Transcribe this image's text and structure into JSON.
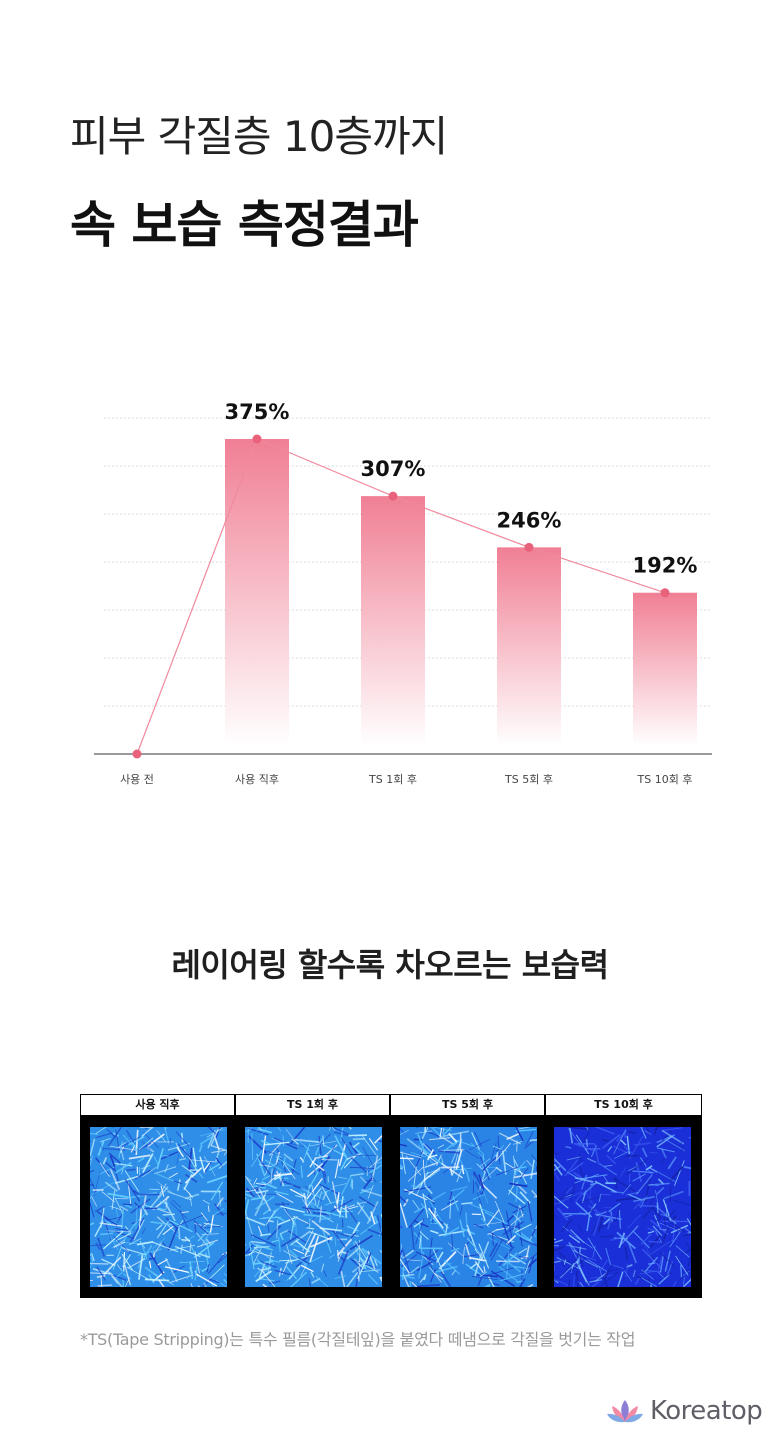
{
  "heading": {
    "line1": "피부 각질층 10층까지",
    "line2": "속 보습 측정결과"
  },
  "chart_data": {
    "type": "bar",
    "categories": [
      "사용 전",
      "사용 직후",
      "TS 1회 후",
      "TS 5회 후",
      "TS 10회 후"
    ],
    "values": [
      0,
      375,
      307,
      246,
      192
    ],
    "data_labels": [
      "",
      "375%",
      "307%",
      "246%",
      "192%"
    ],
    "unit": "%",
    "ylim": [
      0,
      400
    ],
    "grid": true,
    "overlay_line": true,
    "colors": {
      "bar_top": "#f07f94",
      "line": "#ef8a9c",
      "point": "#e8627c"
    }
  },
  "subheading": "레이어링 할수록 차오르는 보습력",
  "panels": [
    {
      "label": "사용 직후",
      "tone": "light"
    },
    {
      "label": "TS 1회 후",
      "tone": "light"
    },
    {
      "label": "TS 5회 후",
      "tone": "medium"
    },
    {
      "label": "TS 10회 후",
      "tone": "dark"
    }
  ],
  "footnote": "*TS(Tape Stripping)는 특수 필름(각질테잎)을 붙였다 떼냄으로 각질을 벗기는 작업",
  "brand": {
    "name": "Koreatop",
    "icon": "lotus-icon"
  }
}
